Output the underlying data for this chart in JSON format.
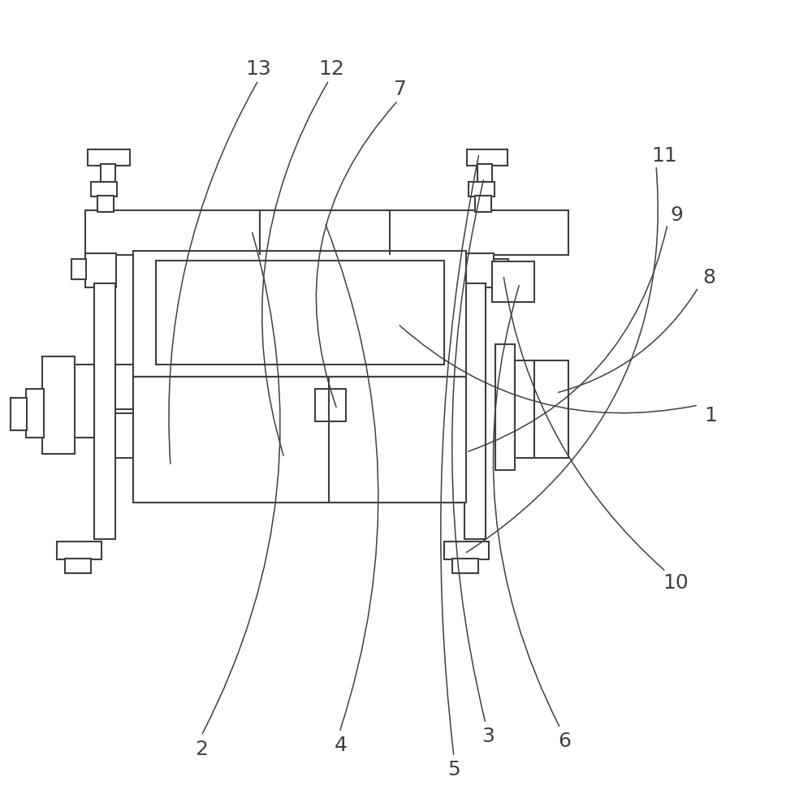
{
  "bg_color": "#ffffff",
  "lc": "#404040",
  "lw": 1.5,
  "lw_thin": 1.0,
  "label_fontsize": 18,
  "figsize": [
    10.0,
    9.95
  ],
  "dpi": 100
}
